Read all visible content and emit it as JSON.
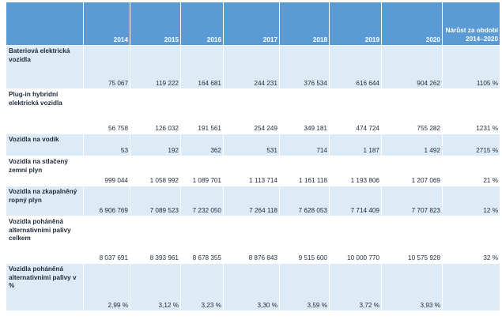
{
  "table": {
    "headers": [
      "",
      "2014",
      "2015",
      "2016",
      "2017",
      "2018",
      "2019",
      "2020",
      "Nárůst za období 2014–2020"
    ],
    "rows": [
      {
        "label": "Bateriová elektrická vozidla",
        "values": [
          "75 067",
          "119 222",
          "164 681",
          "244 231",
          "376 534",
          "616 644",
          "904 262",
          "1105 %"
        ]
      },
      {
        "label": "Plug-in hybridní elektrická vozidla",
        "values": [
          "56 758",
          "126 032",
          "191 561",
          "254 249",
          "349 181",
          "474 724",
          "755 282",
          "1231 %"
        ]
      },
      {
        "label": "Vozidla na vodík",
        "values": [
          "53",
          "192",
          "362",
          "531",
          "714",
          "1 187",
          "1 492",
          "2715 %"
        ]
      },
      {
        "label": "Vozidla na stlačený zemní plyn",
        "values": [
          "999 044",
          "1 058 992",
          "1 089 701",
          "1 113 714",
          "1 161 118",
          "1 193 806",
          "1 207 069",
          "21 %"
        ]
      },
      {
        "label": "Vozidla na zkapalněný ropný plyn",
        "values": [
          "6 906 769",
          "7 089 523",
          "7 232 050",
          "7 264 118",
          "7 628 053",
          "7 714 409",
          "7 707 823",
          "12 %"
        ]
      },
      {
        "label": "Vozidla poháněná alternativními palivy celkem",
        "values": [
          "8 037 691",
          "8 393 961",
          "8 678 355",
          "8 876 843",
          "9 515 600",
          "10 000 770",
          "10 575 928",
          "32 %"
        ]
      },
      {
        "label": "Vozidla poháněná alternativními palivy v %",
        "values": [
          "2,99 %",
          "3,12 %",
          "3,23 %",
          "3,30 %",
          "3,59 %",
          "3,72 %",
          "3,93 %",
          ""
        ]
      }
    ]
  }
}
